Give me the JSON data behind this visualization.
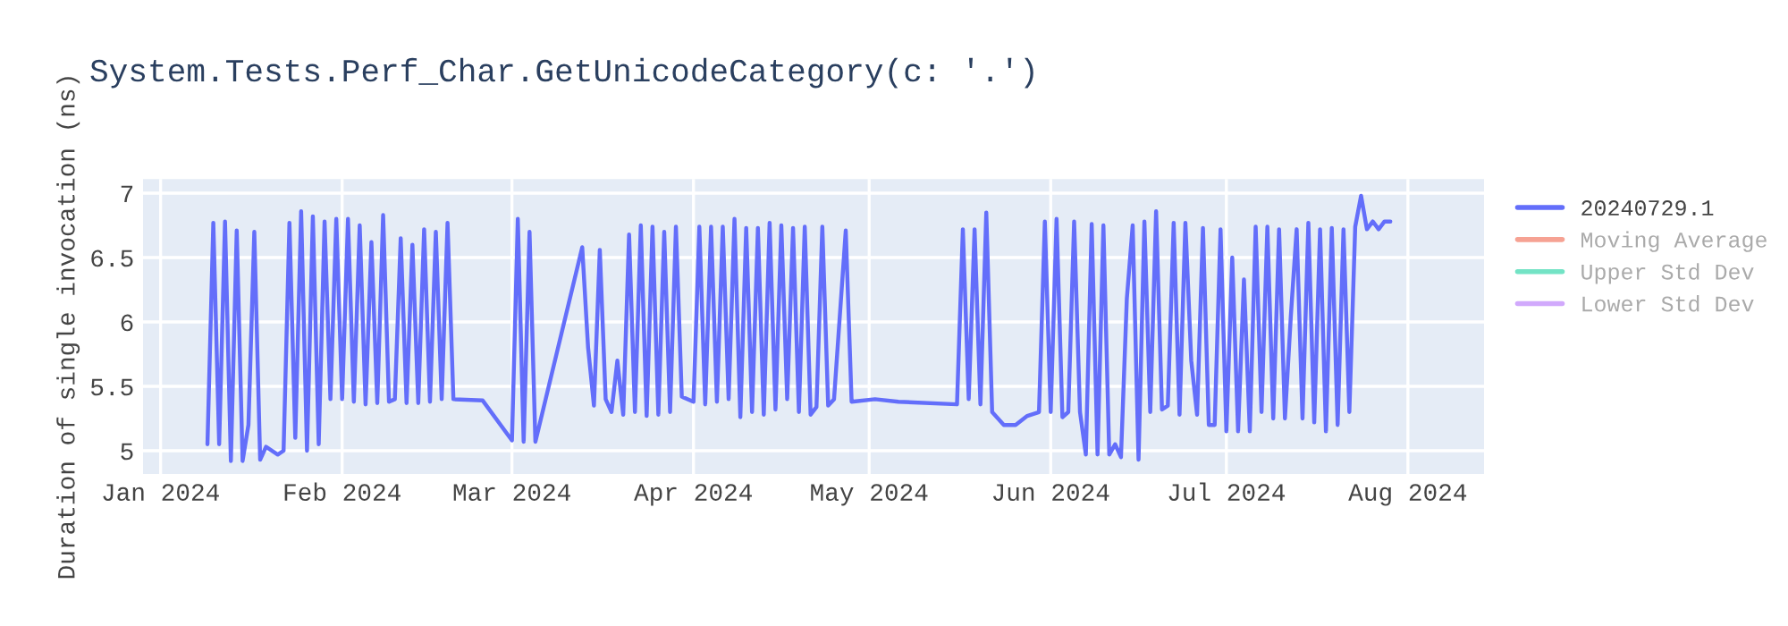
{
  "chart_data": {
    "type": "line",
    "title": "System.Tests.Perf_Char.GetUnicodeCategory(c: '.')",
    "ylabel": "Duration of single invocation (ns)",
    "x": [
      "2024-01-09",
      "2024-01-10",
      "2024-01-11",
      "2024-01-12",
      "2024-01-13",
      "2024-01-14",
      "2024-01-15",
      "2024-01-16",
      "2024-01-17",
      "2024-01-18",
      "2024-01-19",
      "2024-01-21",
      "2024-01-22",
      "2024-01-23",
      "2024-01-24",
      "2024-01-25",
      "2024-01-26",
      "2024-01-27",
      "2024-01-28",
      "2024-01-29",
      "2024-01-30",
      "2024-01-31",
      "2024-02-01",
      "2024-02-02",
      "2024-02-03",
      "2024-02-04",
      "2024-02-05",
      "2024-02-06",
      "2024-02-07",
      "2024-02-08",
      "2024-02-09",
      "2024-02-10",
      "2024-02-11",
      "2024-02-12",
      "2024-02-13",
      "2024-02-14",
      "2024-02-15",
      "2024-02-16",
      "2024-02-17",
      "2024-02-18",
      "2024-02-19",
      "2024-02-20",
      "2024-02-25",
      "2024-03-01",
      "2024-03-02",
      "2024-03-03",
      "2024-03-04",
      "2024-03-05",
      "2024-03-13",
      "2024-03-14",
      "2024-03-15",
      "2024-03-16",
      "2024-03-17",
      "2024-03-18",
      "2024-03-19",
      "2024-03-20",
      "2024-03-21",
      "2024-03-22",
      "2024-03-23",
      "2024-03-24",
      "2024-03-25",
      "2024-03-26",
      "2024-03-27",
      "2024-03-28",
      "2024-03-29",
      "2024-03-30",
      "2024-04-01",
      "2024-04-02",
      "2024-04-03",
      "2024-04-04",
      "2024-04-05",
      "2024-04-06",
      "2024-04-07",
      "2024-04-08",
      "2024-04-09",
      "2024-04-10",
      "2024-04-11",
      "2024-04-12",
      "2024-04-13",
      "2024-04-14",
      "2024-04-15",
      "2024-04-16",
      "2024-04-17",
      "2024-04-18",
      "2024-04-19",
      "2024-04-20",
      "2024-04-21",
      "2024-04-22",
      "2024-04-23",
      "2024-04-24",
      "2024-04-25",
      "2024-04-27",
      "2024-04-28",
      "2024-05-02",
      "2024-05-06",
      "2024-05-16",
      "2024-05-17",
      "2024-05-18",
      "2024-05-19",
      "2024-05-20",
      "2024-05-21",
      "2024-05-22",
      "2024-05-24",
      "2024-05-26",
      "2024-05-28",
      "2024-05-30",
      "2024-05-31",
      "2024-06-01",
      "2024-06-02",
      "2024-06-03",
      "2024-06-04",
      "2024-06-05",
      "2024-06-06",
      "2024-06-07",
      "2024-06-08",
      "2024-06-09",
      "2024-06-10",
      "2024-06-11",
      "2024-06-12",
      "2024-06-13",
      "2024-06-14",
      "2024-06-15",
      "2024-06-16",
      "2024-06-17",
      "2024-06-18",
      "2024-06-19",
      "2024-06-20",
      "2024-06-21",
      "2024-06-22",
      "2024-06-23",
      "2024-06-24",
      "2024-06-25",
      "2024-06-26",
      "2024-06-27",
      "2024-06-28",
      "2024-06-29",
      "2024-06-30",
      "2024-07-01",
      "2024-07-02",
      "2024-07-03",
      "2024-07-04",
      "2024-07-05",
      "2024-07-06",
      "2024-07-07",
      "2024-07-08",
      "2024-07-09",
      "2024-07-10",
      "2024-07-11",
      "2024-07-12",
      "2024-07-13",
      "2024-07-14",
      "2024-07-15",
      "2024-07-16",
      "2024-07-17",
      "2024-07-18",
      "2024-07-19",
      "2024-07-20",
      "2024-07-21",
      "2024-07-22",
      "2024-07-23",
      "2024-07-24",
      "2024-07-25",
      "2024-07-26",
      "2024-07-27",
      "2024-07-28",
      "2024-07-29"
    ],
    "series": [
      {
        "name": "20240729.1",
        "color": "#636efa",
        "values": [
          5.05,
          6.77,
          5.05,
          6.78,
          4.92,
          6.71,
          4.92,
          5.2,
          6.7,
          4.93,
          5.03,
          4.97,
          5.0,
          6.77,
          5.1,
          6.86,
          5.0,
          6.82,
          5.05,
          6.78,
          5.4,
          6.8,
          5.4,
          6.8,
          5.38,
          6.75,
          5.36,
          6.62,
          5.37,
          6.83,
          5.38,
          5.4,
          6.65,
          5.37,
          6.6,
          5.37,
          6.72,
          5.38,
          6.7,
          5.4,
          6.77,
          5.4,
          5.39,
          5.08,
          6.8,
          5.07,
          6.7,
          5.07,
          6.58,
          5.8,
          5.35,
          6.56,
          5.4,
          5.3,
          5.7,
          5.28,
          6.68,
          5.3,
          6.75,
          5.27,
          6.74,
          5.28,
          6.7,
          5.3,
          6.74,
          5.42,
          5.38,
          6.74,
          5.36,
          6.74,
          5.38,
          6.74,
          5.4,
          6.8,
          5.26,
          6.73,
          5.3,
          6.73,
          5.28,
          6.77,
          5.32,
          6.75,
          5.4,
          6.73,
          5.3,
          6.74,
          5.28,
          5.34,
          6.74,
          5.35,
          5.4,
          6.71,
          5.38,
          5.4,
          5.38,
          5.36,
          6.72,
          5.4,
          6.72,
          5.36,
          6.85,
          5.3,
          5.2,
          5.2,
          5.27,
          5.3,
          6.78,
          5.3,
          6.8,
          5.26,
          5.3,
          6.78,
          5.3,
          4.97,
          6.76,
          4.97,
          6.75,
          4.97,
          5.05,
          4.95,
          6.18,
          6.75,
          4.93,
          6.78,
          5.3,
          6.86,
          5.32,
          5.35,
          6.77,
          5.28,
          6.77,
          5.7,
          5.28,
          6.73,
          5.2,
          5.2,
          6.72,
          5.15,
          6.5,
          5.15,
          6.33,
          5.15,
          6.74,
          5.3,
          6.74,
          5.25,
          6.72,
          5.25,
          6.04,
          6.72,
          5.25,
          6.77,
          5.22,
          6.72,
          5.15,
          6.73,
          5.2,
          6.72,
          5.3,
          6.74,
          6.98,
          6.72,
          6.78,
          6.72,
          6.78,
          6.78
        ]
      },
      {
        "name": "Moving Average",
        "color": "#ef553b",
        "values": [
          null,
          null,
          null,
          null,
          null,
          null,
          null,
          null,
          null,
          null,
          null,
          null,
          null,
          null,
          null,
          null,
          null,
          null,
          null,
          null,
          null,
          null,
          null,
          null,
          null,
          null,
          null,
          null,
          null,
          null,
          null,
          null,
          null,
          null,
          null,
          null,
          null,
          null,
          null,
          null,
          null,
          null,
          null,
          null,
          null,
          null,
          null,
          null,
          null,
          null,
          null,
          null,
          null,
          null,
          null,
          null,
          null,
          null,
          null,
          null,
          null,
          null,
          null,
          null,
          null,
          null,
          null,
          null,
          null,
          null,
          null,
          null,
          null,
          null,
          null,
          null,
          null,
          null,
          null,
          null,
          null,
          null,
          null,
          null,
          null,
          null,
          null,
          null,
          null,
          null,
          null,
          null,
          null,
          null,
          null,
          null,
          null,
          null,
          null,
          null,
          null,
          null,
          null,
          null,
          null,
          null,
          null,
          null,
          null,
          null,
          null,
          null,
          null,
          null,
          null,
          null,
          null,
          null,
          null,
          null,
          null,
          null,
          null,
          null,
          null,
          null,
          null,
          null,
          null,
          null,
          null,
          null,
          null,
          null,
          null,
          null,
          null,
          null,
          null,
          null,
          null,
          null,
          null,
          null,
          null,
          null,
          null,
          null,
          null,
          null,
          null,
          null,
          null,
          null,
          null,
          null,
          null,
          null,
          null,
          null,
          null,
          null,
          null,
          null,
          null,
          null
        ]
      },
      {
        "name": "Upper Std Dev",
        "color": "#00cc96",
        "values": [
          null,
          null,
          null,
          null,
          null,
          null,
          null,
          null,
          null,
          null,
          null,
          null,
          null,
          null,
          null,
          null,
          null,
          null,
          null,
          null,
          null,
          null,
          null,
          null,
          null,
          null,
          null,
          null,
          null,
          null,
          null,
          null,
          null,
          null,
          null,
          null,
          null,
          null,
          null,
          null,
          null,
          null,
          null,
          null,
          null,
          null,
          null,
          null,
          null,
          null,
          null,
          null,
          null,
          null,
          null,
          null,
          null,
          null,
          null,
          null,
          null,
          null,
          null,
          null,
          null,
          null,
          null,
          null,
          null,
          null,
          null,
          null,
          null,
          null,
          null,
          null,
          null,
          null,
          null,
          null,
          null,
          null,
          null,
          null,
          null,
          null,
          null,
          null,
          null,
          null,
          null,
          null,
          null,
          null,
          null,
          null,
          null,
          null,
          null,
          null,
          null,
          null,
          null,
          null,
          null,
          null,
          null,
          null,
          null,
          null,
          null,
          null,
          null,
          null,
          null,
          null,
          null,
          null,
          null,
          null,
          null,
          null,
          null,
          null,
          null,
          null,
          null,
          null,
          null,
          null,
          null,
          null,
          null,
          null,
          null,
          null,
          null,
          null,
          null,
          null,
          null,
          null,
          null,
          null,
          null,
          null,
          null,
          null,
          null,
          null,
          null,
          null,
          null,
          null,
          null,
          null,
          null,
          null,
          null,
          null,
          null,
          null,
          null,
          null,
          null,
          null
        ]
      },
      {
        "name": "Lower Std Dev",
        "color": "#ab63fa",
        "values": [
          null,
          null,
          null,
          null,
          null,
          null,
          null,
          null,
          null,
          null,
          null,
          null,
          null,
          null,
          null,
          null,
          null,
          null,
          null,
          null,
          null,
          null,
          null,
          null,
          null,
          null,
          null,
          null,
          null,
          null,
          null,
          null,
          null,
          null,
          null,
          null,
          null,
          null,
          null,
          null,
          null,
          null,
          null,
          null,
          null,
          null,
          null,
          null,
          null,
          null,
          null,
          null,
          null,
          null,
          null,
          null,
          null,
          null,
          null,
          null,
          null,
          null,
          null,
          null,
          null,
          null,
          null,
          null,
          null,
          null,
          null,
          null,
          null,
          null,
          null,
          null,
          null,
          null,
          null,
          null,
          null,
          null,
          null,
          null,
          null,
          null,
          null,
          null,
          null,
          null,
          null,
          null,
          null,
          null,
          null,
          null,
          null,
          null,
          null,
          null,
          null,
          null,
          null,
          null,
          null,
          null,
          null,
          null,
          null,
          null,
          null,
          null,
          null,
          null,
          null,
          null,
          null,
          null,
          null,
          null,
          null,
          null,
          null,
          null,
          null,
          null,
          null,
          null,
          null,
          null,
          null,
          null,
          null,
          null,
          null,
          null,
          null,
          null,
          null,
          null,
          null,
          null,
          null,
          null,
          null,
          null,
          null,
          null,
          null,
          null,
          null,
          null,
          null,
          null,
          null,
          null,
          null,
          null,
          null,
          null,
          null,
          null,
          null,
          null,
          null,
          null
        ]
      }
    ],
    "xlim": [
      "2023-12-29",
      "2024-08-14"
    ],
    "xticks": [
      {
        "value": "2024-01-01",
        "label": "Jan 2024"
      },
      {
        "value": "2024-02-01",
        "label": "Feb 2024"
      },
      {
        "value": "2024-03-01",
        "label": "Mar 2024"
      },
      {
        "value": "2024-04-01",
        "label": "Apr 2024"
      },
      {
        "value": "2024-05-01",
        "label": "May 2024"
      },
      {
        "value": "2024-06-01",
        "label": "Jun 2024"
      },
      {
        "value": "2024-07-01",
        "label": "Jul 2024"
      },
      {
        "value": "2024-08-01",
        "label": "Aug 2024"
      }
    ],
    "ylim": [
      4.82,
      7.11
    ],
    "yticks": [
      5,
      5.5,
      6,
      6.5,
      7
    ],
    "grid": true,
    "legend": "top right"
  }
}
